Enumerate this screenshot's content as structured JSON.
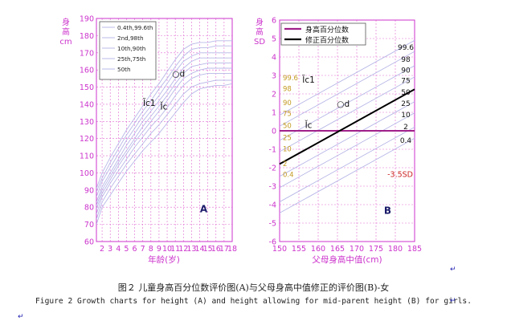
{
  "colors": {
    "axis": "#cc33cc",
    "grid": "#e06ad0",
    "curve": "#b8b8e8",
    "bold_line": "#000000",
    "mark_blue": "#3c3cc8"
  },
  "caption": {
    "cn": "图２ 儿童身高百分位数评价图(A)与父母身高中值修正的评价图(B)-女",
    "en": "Figure 2 Growth charts for height (A) and height allowing for mid-parent height (B) for girls."
  },
  "paragraph_marks": [
    "↵",
    "↵",
    "↵"
  ],
  "chart_data": [
    {
      "type": "line",
      "panel_label": "A",
      "ylabel": "身\n高\ncm",
      "xlabel": "年龄(岁)",
      "xlim": [
        1.3,
        18
      ],
      "ylim": [
        60,
        190
      ],
      "x_ticks": [
        2,
        3,
        4,
        5,
        6,
        7,
        8,
        9,
        10,
        11,
        12,
        13,
        14,
        15,
        16,
        17,
        18
      ],
      "y_ticks": [
        60,
        70,
        80,
        90,
        100,
        110,
        120,
        130,
        140,
        150,
        160,
        170,
        180,
        190
      ],
      "grid": true,
      "legend_position": "top-left",
      "legend": [
        "0.4th,99.6th",
        "2nd,98th",
        "10th,90th",
        "25th,75th",
        "50th"
      ],
      "x": [
        1.3,
        2,
        3,
        4,
        5,
        6,
        7,
        8,
        9,
        10,
        11,
        12,
        13,
        14,
        15,
        16,
        17,
        18
      ],
      "series": [
        {
          "values": [
            70,
            80,
            87,
            94,
            101,
            107,
            113,
            118,
            123,
            129,
            135,
            141,
            146,
            149,
            150,
            151,
            151,
            152
          ]
        },
        {
          "values": [
            73,
            83,
            91,
            98,
            105,
            111,
            117,
            123,
            128,
            134,
            140,
            146,
            150,
            152,
            153,
            154,
            154,
            154
          ]
        },
        {
          "values": [
            76,
            86,
            94,
            101,
            108,
            115,
            121,
            127,
            132,
            138,
            145,
            151,
            155,
            157,
            158,
            158,
            158,
            158
          ]
        },
        {
          "values": [
            79,
            88,
            96,
            104,
            111,
            118,
            124,
            130,
            136,
            142,
            149,
            155,
            158,
            160,
            161,
            161,
            161,
            161
          ]
        },
        {
          "values": [
            81,
            90,
            98,
            106,
            113,
            120,
            127,
            133,
            139,
            145,
            152,
            158,
            162,
            163,
            164,
            164,
            164,
            164
          ]
        },
        {
          "values": [
            83,
            92,
            100,
            108,
            116,
            123,
            130,
            136,
            142,
            148,
            155,
            161,
            165,
            167,
            167,
            167,
            167,
            167
          ]
        },
        {
          "values": [
            86,
            95,
            103,
            111,
            119,
            126,
            133,
            139,
            145,
            152,
            159,
            165,
            168,
            170,
            170,
            170,
            170,
            170
          ]
        },
        {
          "values": [
            89,
            97,
            106,
            114,
            122,
            129,
            136,
            142,
            149,
            155,
            162,
            168,
            172,
            173,
            173,
            174,
            174,
            174
          ]
        },
        {
          "values": [
            91,
            100,
            109,
            117,
            125,
            132,
            139,
            146,
            152,
            159,
            166,
            172,
            175,
            176,
            176,
            177,
            177,
            177
          ]
        }
      ],
      "annotations": [
        {
          "text": "○d",
          "x": 11.4,
          "y": 156
        },
        {
          "text": "Ĭc1",
          "x": 7.8,
          "y": 139
        },
        {
          "text": "Ĭc",
          "x": 9.6,
          "y": 137
        }
      ]
    },
    {
      "type": "line",
      "panel_label": "B",
      "ylabel": "身\n高\nSD",
      "xlabel": "父母身高中值(cm)",
      "xlim": [
        150,
        185
      ],
      "ylim": [
        -6,
        6
      ],
      "x_ticks": [
        150,
        155,
        160,
        165,
        170,
        175,
        180,
        185
      ],
      "y_ticks": [
        -6,
        -5,
        -4,
        -3,
        -2,
        -1,
        0,
        1,
        2,
        3,
        4,
        5,
        6
      ],
      "grid": true,
      "legend_position": "top-left",
      "legend": [
        "身高百分位数",
        "修正百分位数"
      ],
      "reference_lines": [
        {
          "legend_index": 0,
          "y": 0,
          "color": "#a0208a"
        },
        {
          "legend_index": 1,
          "x": [
            150,
            185
          ],
          "y": [
            -1.8,
            2.25
          ],
          "color": "#000000"
        }
      ],
      "percentile_lines": [
        {
          "label": "99.6",
          "z": 2.65
        },
        {
          "label": "98",
          "z": 2.05
        },
        {
          "label": "90",
          "z": 1.28
        },
        {
          "label": "75",
          "z": 0.67
        },
        {
          "label": "50",
          "z": 0.0
        },
        {
          "label": "25",
          "z": -0.67
        },
        {
          "label": "10",
          "z": -1.28
        },
        {
          "label": "2",
          "z": -2.05
        },
        {
          "label": "0.4",
          "z": -2.65
        }
      ],
      "band_slope_sd_per_cm": 0.1157,
      "band_center_sd_at_150": -1.8,
      "right_labels": [
        "99.6",
        "98",
        "90",
        "75",
        "50",
        "25",
        "10",
        "2",
        "0.4"
      ],
      "left_labels": [
        "99.6",
        "98",
        "90",
        "75",
        "50",
        "25",
        "10",
        "2",
        "0.4"
      ],
      "threshold_label": "-3.5SD",
      "annotations": [
        {
          "text": "Ĭc1",
          "x": 157.5,
          "y": 2.6
        },
        {
          "text": "○d",
          "x": 166.5,
          "y": 1.3
        },
        {
          "text": "Ĭc",
          "x": 157.5,
          "y": 0.15
        }
      ]
    }
  ]
}
